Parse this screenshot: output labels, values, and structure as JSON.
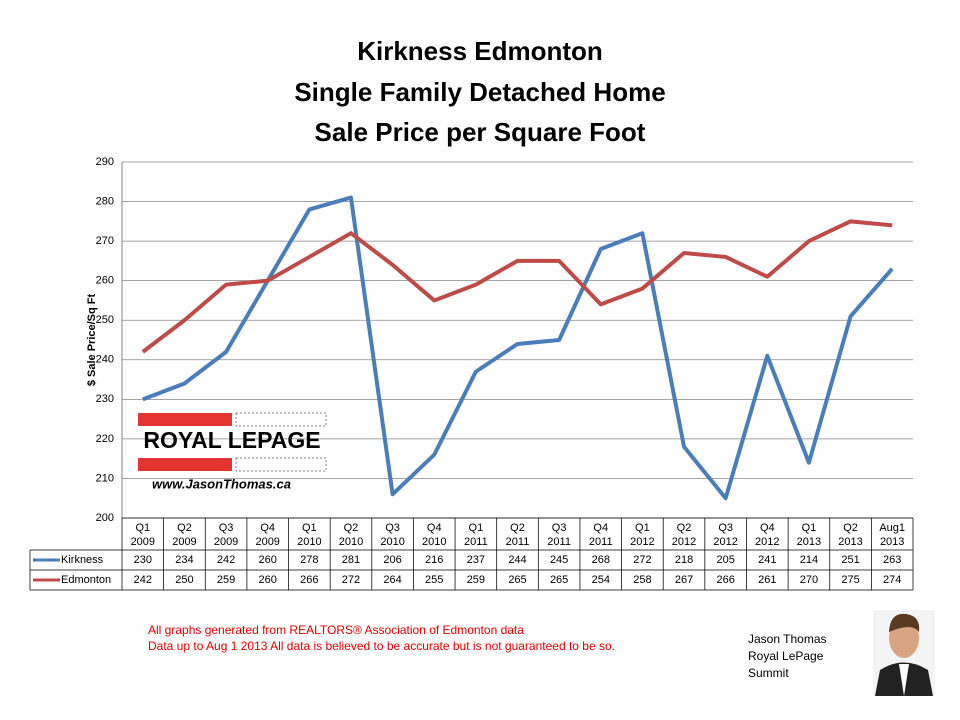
{
  "chart_data": {
    "type": "line",
    "title": [
      "Kirkness Edmonton",
      "Single Family Detached Home",
      "Sale Price per Square Foot"
    ],
    "y_label": "$ Sale Price/Sq Ft",
    "categories": [
      "Q1 2009",
      "Q2 2009",
      "Q3 2009",
      "Q4 2009",
      "Q1 2010",
      "Q2 2010",
      "Q3 2010",
      "Q4 2010",
      "Q1 2011",
      "Q2 2011",
      "Q3 2011",
      "Q4 2011",
      "Q1 2012",
      "Q2 2012",
      "Q3 2012",
      "Q4 2012",
      "Q1 2013",
      "Q2 2013",
      "Aug1 2013"
    ],
    "series": [
      {
        "name": "Kirkness",
        "color": "#4a7ebb",
        "values": [
          230,
          234,
          242,
          260,
          278,
          281,
          206,
          216,
          237,
          244,
          245,
          268,
          272,
          218,
          205,
          241,
          214,
          251,
          263
        ]
      },
      {
        "name": "Edmonton",
        "color": "#be4b48",
        "values": [
          242,
          250,
          259,
          260,
          266,
          272,
          264,
          255,
          259,
          265,
          265,
          254,
          258,
          267,
          266,
          261,
          270,
          275,
          274
        ]
      }
    ],
    "ylim": [
      200,
      290
    ],
    "yticks": [
      200,
      210,
      220,
      230,
      240,
      250,
      260,
      270,
      280,
      290
    ],
    "grid": true,
    "data_table": true
  },
  "logo": {
    "brand": "ROYAL LEPAGE",
    "url": "www.JasonThomas.ca"
  },
  "notes": [
    "All graphs generated from REALTORS® Association of Edmonton data",
    "Data up to  Aug 1 2013  All data is believed to be accurate but is not guaranteed to be so."
  ],
  "agent": [
    "Jason Thomas",
    "Royal LePage",
    "Summit"
  ]
}
